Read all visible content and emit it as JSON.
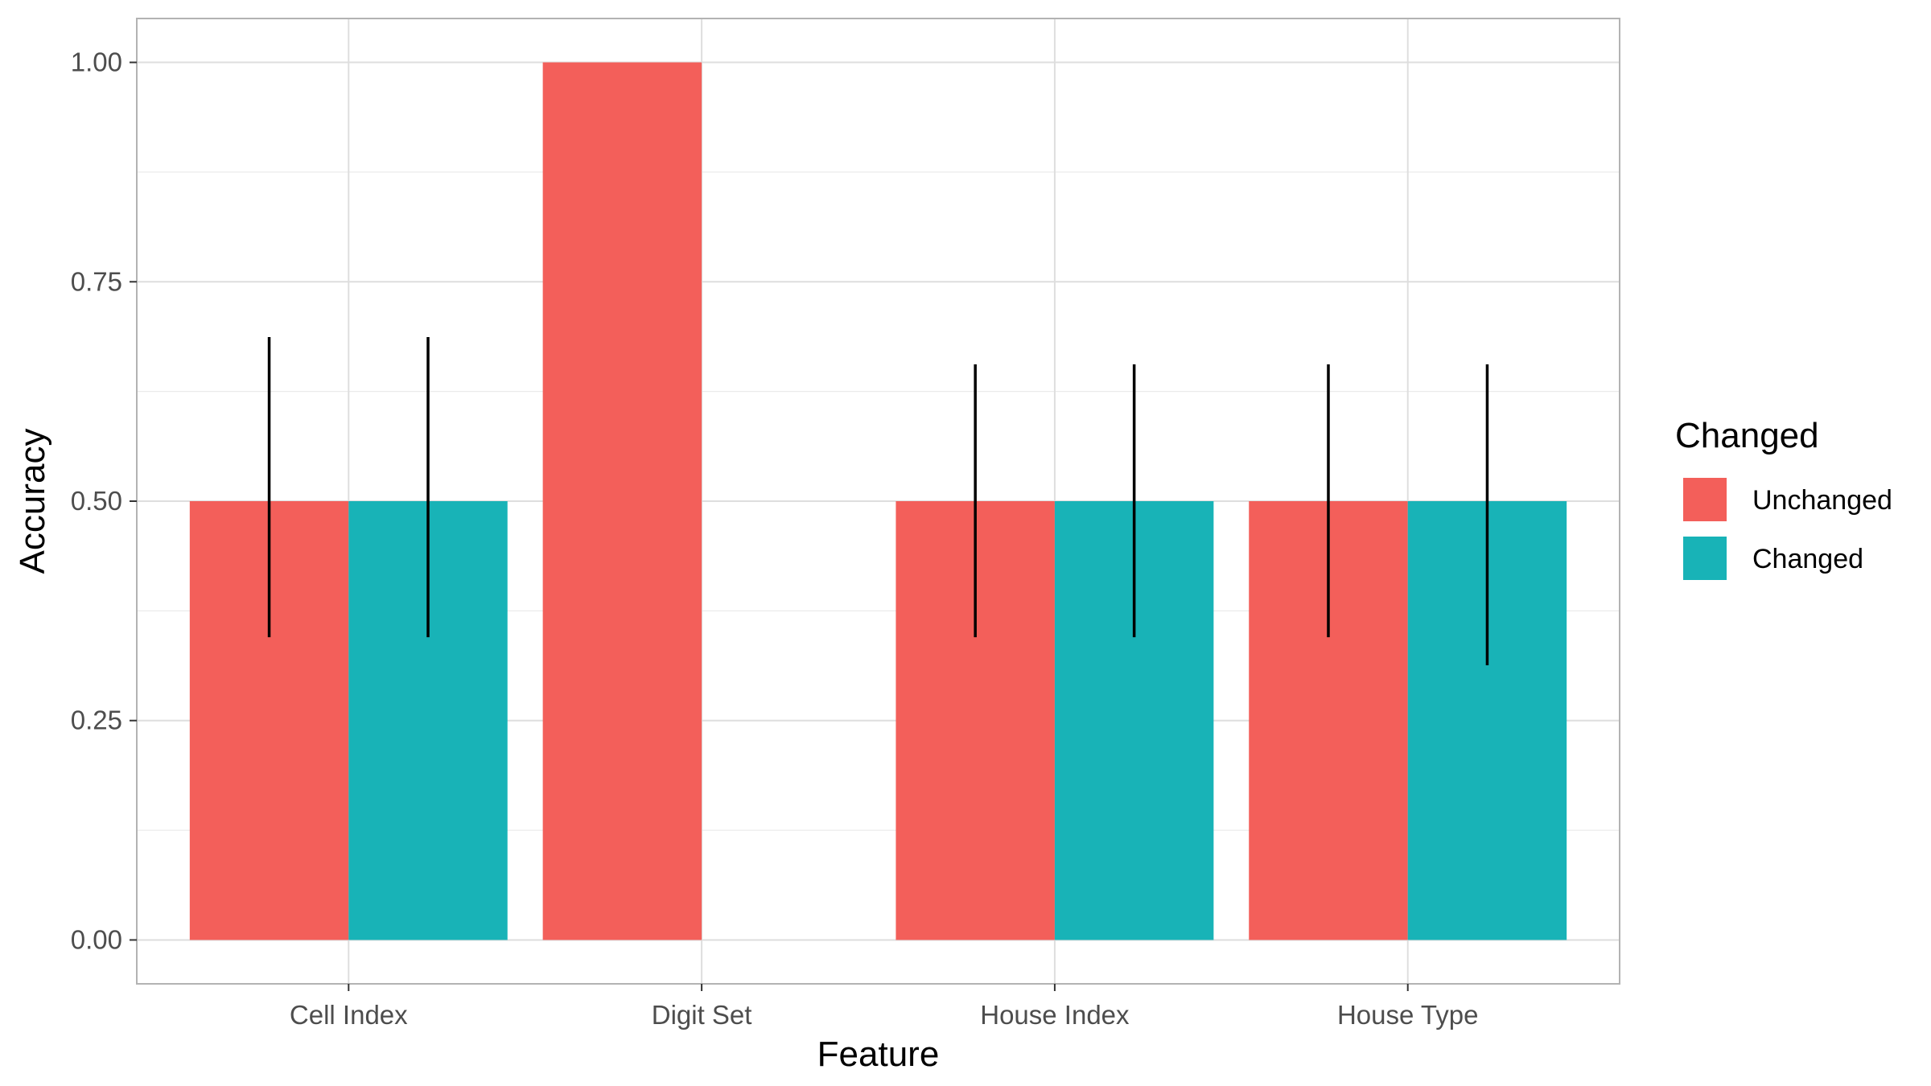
{
  "chart_data": {
    "type": "bar",
    "title": "",
    "xlabel": "Feature",
    "ylabel": "Accuracy",
    "categories": [
      "Cell Index",
      "Digit Set",
      "House Index",
      "House Type"
    ],
    "ylim": [
      -0.05,
      1.05
    ],
    "yticks": [
      0.0,
      0.25,
      0.5,
      0.75,
      1.0
    ],
    "ytick_labels": [
      "0.00",
      "0.25",
      "0.50",
      "0.75",
      "1.00"
    ],
    "grid": true,
    "legend": {
      "title": "Changed",
      "position": "right",
      "entries": [
        "Unchanged",
        "Changed"
      ]
    },
    "series": [
      {
        "name": "Unchanged",
        "color": "#F35F5A",
        "values": [
          0.5,
          1.0,
          0.5,
          0.5
        ],
        "error_low": [
          0.345,
          null,
          0.345,
          0.345
        ],
        "error_high": [
          0.687,
          null,
          0.656,
          0.656
        ]
      },
      {
        "name": "Changed",
        "color": "#18B3B7",
        "values": [
          0.5,
          null,
          0.5,
          0.5
        ],
        "error_low": [
          0.345,
          null,
          0.345,
          0.313
        ],
        "error_high": [
          0.687,
          null,
          0.656,
          0.656
        ]
      }
    ]
  }
}
